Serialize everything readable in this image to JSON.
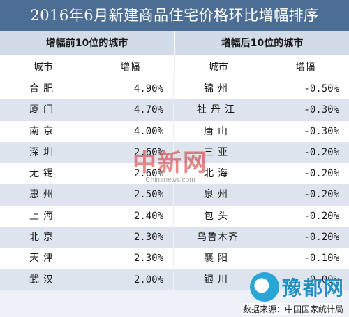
{
  "title": "2016年6月新建商品住宅价格环比增幅排序",
  "groups": {
    "top": "增幅前10位的城市",
    "bottom": "增幅后10位的城市"
  },
  "columns": {
    "city": "城市",
    "increase": "增幅"
  },
  "top10": [
    {
      "city": "合肥",
      "value": "4.90%"
    },
    {
      "city": "厦门",
      "value": "4.70%"
    },
    {
      "city": "南京",
      "value": "4.00%"
    },
    {
      "city": "深圳",
      "value": "2.60%"
    },
    {
      "city": "无锡",
      "value": "2.60%"
    },
    {
      "city": "惠州",
      "value": "2.50%"
    },
    {
      "city": "上海",
      "value": "2.40%"
    },
    {
      "city": "北京",
      "value": "2.30%"
    },
    {
      "city": "天津",
      "value": "2.30%"
    },
    {
      "city": "武汉",
      "value": "2.00%"
    }
  ],
  "bottom10": [
    {
      "city": "锦州",
      "value": "-0.50%"
    },
    {
      "city": "牡丹江",
      "value": "-0.30%"
    },
    {
      "city": "唐山",
      "value": "-0.30%"
    },
    {
      "city": "三亚",
      "value": "-0.20%"
    },
    {
      "city": "北海",
      "value": "-0.20%"
    },
    {
      "city": "泉州",
      "value": "-0.20%"
    },
    {
      "city": "包头",
      "value": "-0.20%"
    },
    {
      "city": "乌鲁木齐",
      "value": "-0.20%"
    },
    {
      "city": "襄阳",
      "value": "-0.10%"
    },
    {
      "city": "银川",
      "value": "0.00%"
    }
  ],
  "watermark": {
    "main": "中新网",
    "sub": "Chinanews.com"
  },
  "logo_text": "豫都网",
  "source": "数据来源：中国国家统计局"
}
